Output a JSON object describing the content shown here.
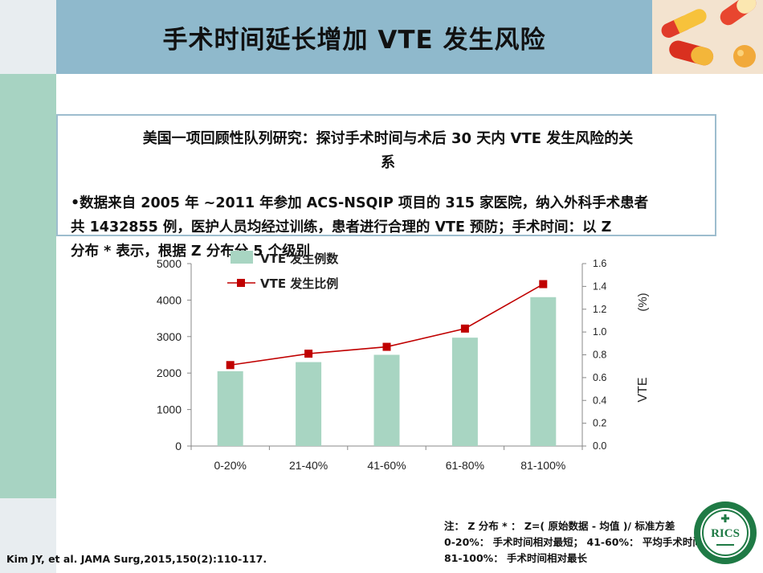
{
  "slide": {
    "title": "手术时间延长增加 VTE 发生风险",
    "box": {
      "heading_lines": [
        "美国一项回顾性队列研究：探讨手术时间与术后 30 天内 VTE 发生风险的关",
        "系"
      ],
      "bullet_lines": [
        "•数据来自 2005 年 ~2011 年参加 ACS-NSQIP 项目的 315 家医院，纳入外科手术患者",
        "共 1432855 例，医护人员均经过训练，患者进行合理的 VTE 预防；手术时间：以 Z",
        "分布 * 表示，根据 Z 分布分 5 个级别"
      ]
    },
    "note_lines": [
      "注：  Z 分布 * ：  Z=( 原始数据 - 均值 )/ 标准方差",
      "0-20%： 手术时间相对最短；  41-60%： 平均手术时间；",
      "81-100%： 手术时间相对最长"
    ],
    "citation": "Kim JY, et al. JAMA Surg,2015,150(2):110-117.",
    "logo_text": "RICS"
  },
  "chart_data": {
    "type": "bar",
    "categories": [
      "0-20%",
      "21-40%",
      "41-60%",
      "61-80%",
      "81-100%"
    ],
    "series": [
      {
        "name": "VTE 发生例数",
        "type": "bar",
        "axis": "left",
        "color": "#a8d5c2",
        "values": [
          2050,
          2300,
          2500,
          2970,
          4080
        ]
      },
      {
        "name": "VTE 发生比例",
        "type": "line",
        "axis": "right",
        "color": "#c00000",
        "values": [
          0.71,
          0.81,
          0.87,
          1.03,
          1.42
        ]
      }
    ],
    "y_left": {
      "min": 0,
      "max": 5000,
      "ticks": [
        0,
        1000,
        2000,
        3000,
        4000,
        5000
      ]
    },
    "y_right": {
      "min": 0,
      "max": 1.6,
      "ticks": [
        "0.0",
        "0.2",
        "0.4",
        "0.6",
        "0.8",
        "1.0",
        "1.2",
        "1.4",
        "1.6"
      ],
      "label": "VTE",
      "unit": "(%)"
    },
    "grid": false,
    "legend": "top-left"
  }
}
